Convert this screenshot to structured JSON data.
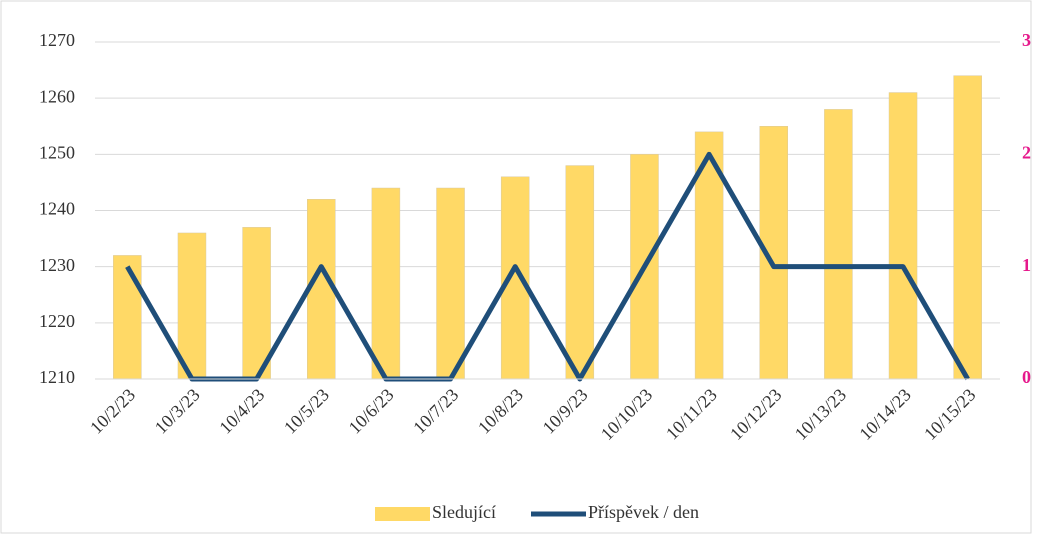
{
  "chart_data": {
    "type": "bar",
    "categories": [
      "10/2/23",
      "10/3/23",
      "10/4/23",
      "10/5/23",
      "10/6/23",
      "10/7/23",
      "10/8/23",
      "10/9/23",
      "10/10/23",
      "10/11/23",
      "10/12/23",
      "10/13/23",
      "10/14/23",
      "10/15/23"
    ],
    "series": [
      {
        "name": "Sledující",
        "type": "bar",
        "color": "#ffd966",
        "values": [
          1232,
          1236,
          1237,
          1242,
          1244,
          1244,
          1246,
          1248,
          1250,
          1254,
          1255,
          1258,
          1261,
          1264
        ]
      },
      {
        "name": "Příspěvek / den",
        "type": "line",
        "axis": "y2",
        "color": "#1f4e79",
        "values": [
          1,
          0,
          0,
          1,
          0,
          0,
          1,
          0,
          1,
          2,
          1,
          1,
          1,
          0
        ]
      }
    ],
    "ylim": [
      1210,
      1270
    ],
    "yticks": [
      1210,
      1220,
      1230,
      1240,
      1250,
      1260,
      1270
    ],
    "y2lim": [
      0,
      3
    ],
    "y2ticks": [
      0,
      1,
      2,
      3
    ],
    "y2tick_color": "#e6198c",
    "grid": true,
    "legend": "bottom"
  }
}
